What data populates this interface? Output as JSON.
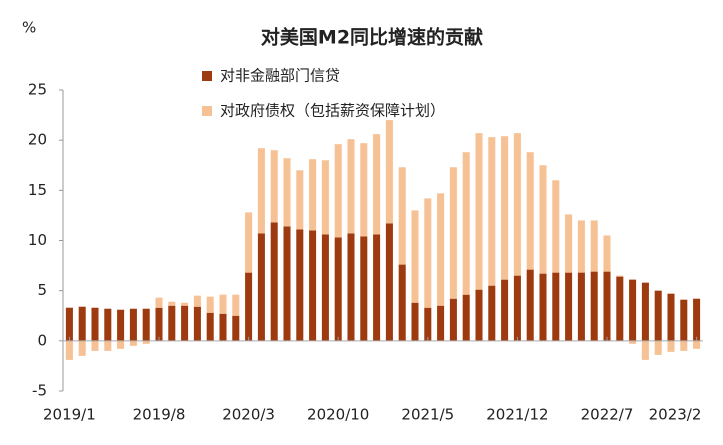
{
  "chart_data": {
    "type": "bar",
    "stacked": true,
    "title": "对美国M2同比增速的贡献",
    "ylabel": "%",
    "categories": [
      "2019/1",
      null,
      null,
      null,
      null,
      null,
      null,
      "2019/8",
      null,
      null,
      null,
      null,
      null,
      null,
      "2020/3",
      null,
      null,
      null,
      null,
      null,
      null,
      "2020/10",
      null,
      null,
      null,
      null,
      null,
      null,
      "2021/5",
      null,
      null,
      null,
      null,
      null,
      null,
      "2021/12",
      null,
      null,
      null,
      null,
      null,
      null,
      "2022/7",
      null,
      null,
      null,
      null,
      null,
      null,
      "2023/2"
    ],
    "series": [
      {
        "name": "对非金融部门信贷",
        "color": "#9e3a10",
        "values": [
          3.3,
          3.4,
          3.3,
          3.2,
          3.1,
          3.2,
          3.2,
          3.3,
          3.5,
          3.5,
          3.4,
          2.8,
          2.7,
          2.5,
          6.8,
          10.7,
          11.8,
          11.4,
          11.1,
          11.0,
          10.6,
          10.3,
          10.7,
          10.4,
          10.6,
          11.7,
          7.6,
          3.8,
          3.3,
          3.5,
          4.2,
          4.6,
          5.1,
          5.5,
          6.1,
          6.5,
          7.1,
          6.7,
          6.8,
          6.8,
          6.8,
          6.9,
          6.9,
          6.4,
          6.1,
          5.8,
          5.0,
          4.7,
          4.1,
          4.2
        ]
      },
      {
        "name": "对政府债权（包括薪资保障计划）",
        "color": "#f6c195",
        "values": [
          -1.9,
          -1.5,
          -1.0,
          -1.0,
          -0.8,
          -0.5,
          -0.3,
          1.0,
          0.4,
          0.3,
          1.1,
          1.6,
          1.9,
          2.1,
          6.0,
          8.5,
          7.2,
          6.8,
          5.9,
          7.1,
          7.4,
          9.3,
          9.4,
          9.3,
          10.0,
          10.3,
          9.7,
          9.2,
          10.9,
          11.2,
          13.1,
          14.2,
          15.6,
          14.8,
          14.3,
          14.2,
          11.7,
          10.8,
          9.2,
          5.8,
          5.2,
          5.1,
          3.6,
          0.1,
          -0.3,
          -1.9,
          -1.4,
          -1.1,
          -1.0,
          -0.8
        ]
      }
    ],
    "ylim": [
      -5,
      25
    ],
    "yticks": [
      -5,
      0,
      5,
      10,
      15,
      20,
      25
    ],
    "grid": false
  }
}
